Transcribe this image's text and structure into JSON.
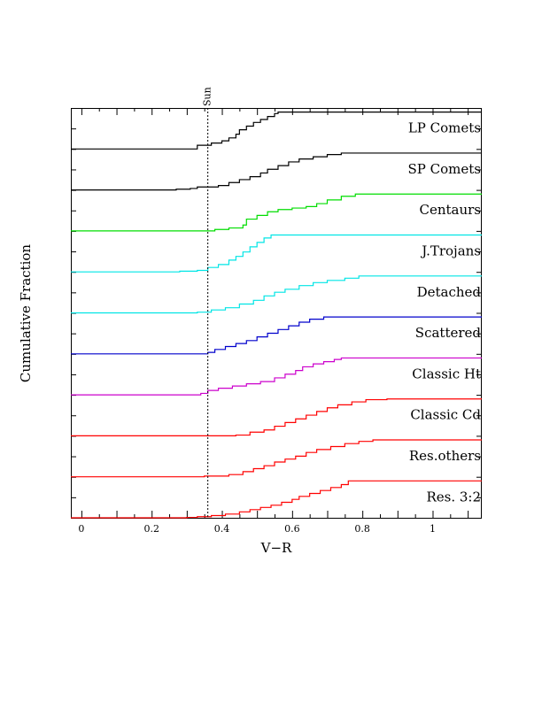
{
  "chart_data": {
    "type": "line",
    "subtype": "stacked cumulative step distributions",
    "xlabel": "V−R",
    "ylabel": "Cumulative Fraction",
    "xlim": [
      -0.03,
      1.14
    ],
    "xticks": [
      0,
      0.2,
      0.4,
      0.6,
      0.8,
      1
    ],
    "xtick_labels": [
      "0",
      "0.2",
      "0.4",
      "0.6",
      "0.8",
      "1"
    ],
    "reference_line": {
      "label": "Sun",
      "x": 0.36,
      "style": "dotted"
    },
    "grid": false,
    "series": [
      {
        "name": "Res. 3:2",
        "color": "#ff0000",
        "points": [
          [
            -0.03,
            0
          ],
          [
            0.3,
            0.01
          ],
          [
            0.33,
            0.03
          ],
          [
            0.37,
            0.06
          ],
          [
            0.41,
            0.1
          ],
          [
            0.45,
            0.16
          ],
          [
            0.48,
            0.22
          ],
          [
            0.51,
            0.28
          ],
          [
            0.54,
            0.34
          ],
          [
            0.57,
            0.42
          ],
          [
            0.6,
            0.5
          ],
          [
            0.62,
            0.58
          ],
          [
            0.65,
            0.66
          ],
          [
            0.68,
            0.74
          ],
          [
            0.71,
            0.82
          ],
          [
            0.74,
            0.9
          ],
          [
            0.76,
            1
          ],
          [
            1.14,
            1
          ]
        ]
      },
      {
        "name": "Res.others",
        "color": "#ff0000",
        "points": [
          [
            -0.03,
            0
          ],
          [
            0.35,
            0.02
          ],
          [
            0.42,
            0.06
          ],
          [
            0.46,
            0.14
          ],
          [
            0.49,
            0.22
          ],
          [
            0.52,
            0.3
          ],
          [
            0.55,
            0.4
          ],
          [
            0.58,
            0.48
          ],
          [
            0.61,
            0.56
          ],
          [
            0.64,
            0.66
          ],
          [
            0.67,
            0.74
          ],
          [
            0.71,
            0.82
          ],
          [
            0.75,
            0.9
          ],
          [
            0.79,
            0.96
          ],
          [
            0.83,
            1
          ],
          [
            1.14,
            1
          ]
        ]
      },
      {
        "name": "Classic Cd",
        "color": "#ff0000",
        "points": [
          [
            -0.03,
            0
          ],
          [
            0.44,
            0.02
          ],
          [
            0.48,
            0.1
          ],
          [
            0.52,
            0.16
          ],
          [
            0.55,
            0.26
          ],
          [
            0.58,
            0.36
          ],
          [
            0.61,
            0.46
          ],
          [
            0.64,
            0.56
          ],
          [
            0.67,
            0.66
          ],
          [
            0.7,
            0.76
          ],
          [
            0.73,
            0.84
          ],
          [
            0.77,
            0.92
          ],
          [
            0.81,
            0.98
          ],
          [
            0.87,
            1
          ],
          [
            1.14,
            1
          ]
        ]
      },
      {
        "name": "Classic Ht",
        "color": "#cc00cc",
        "points": [
          [
            -0.03,
            0
          ],
          [
            0.34,
            0.04
          ],
          [
            0.36,
            0.12
          ],
          [
            0.39,
            0.18
          ],
          [
            0.43,
            0.24
          ],
          [
            0.47,
            0.3
          ],
          [
            0.51,
            0.36
          ],
          [
            0.55,
            0.46
          ],
          [
            0.58,
            0.56
          ],
          [
            0.61,
            0.66
          ],
          [
            0.63,
            0.76
          ],
          [
            0.66,
            0.84
          ],
          [
            0.69,
            0.9
          ],
          [
            0.72,
            0.96
          ],
          [
            0.74,
            1
          ],
          [
            1.14,
            1
          ]
        ]
      },
      {
        "name": "Scattered",
        "color": "#0000cc",
        "points": [
          [
            -0.03,
            0
          ],
          [
            0.36,
            0.04
          ],
          [
            0.38,
            0.12
          ],
          [
            0.41,
            0.2
          ],
          [
            0.44,
            0.28
          ],
          [
            0.47,
            0.36
          ],
          [
            0.5,
            0.46
          ],
          [
            0.53,
            0.56
          ],
          [
            0.56,
            0.66
          ],
          [
            0.59,
            0.76
          ],
          [
            0.62,
            0.86
          ],
          [
            0.65,
            0.94
          ],
          [
            0.69,
            1
          ],
          [
            1.14,
            1
          ]
        ]
      },
      {
        "name": "Detached",
        "color": "#00e5e5",
        "points": [
          [
            -0.03,
            0
          ],
          [
            0.33,
            0.02
          ],
          [
            0.37,
            0.08
          ],
          [
            0.41,
            0.14
          ],
          [
            0.45,
            0.24
          ],
          [
            0.49,
            0.34
          ],
          [
            0.52,
            0.46
          ],
          [
            0.55,
            0.56
          ],
          [
            0.58,
            0.64
          ],
          [
            0.62,
            0.74
          ],
          [
            0.66,
            0.82
          ],
          [
            0.7,
            0.88
          ],
          [
            0.75,
            0.94
          ],
          [
            0.79,
            1
          ],
          [
            1.14,
            1
          ]
        ]
      },
      {
        "name": "J.Trojans",
        "color": "#00e5e5",
        "points": [
          [
            -0.03,
            0
          ],
          [
            0.28,
            0.02
          ],
          [
            0.33,
            0.04
          ],
          [
            0.36,
            0.12
          ],
          [
            0.39,
            0.2
          ],
          [
            0.42,
            0.32
          ],
          [
            0.44,
            0.42
          ],
          [
            0.46,
            0.54
          ],
          [
            0.48,
            0.68
          ],
          [
            0.5,
            0.8
          ],
          [
            0.52,
            0.92
          ],
          [
            0.54,
            1
          ],
          [
            1.14,
            1
          ]
        ]
      },
      {
        "name": "Centaurs",
        "color": "#00dd00",
        "points": [
          [
            -0.03,
            0
          ],
          [
            0.38,
            0.04
          ],
          [
            0.42,
            0.08
          ],
          [
            0.46,
            0.16
          ],
          [
            0.47,
            0.32
          ],
          [
            0.5,
            0.42
          ],
          [
            0.53,
            0.52
          ],
          [
            0.56,
            0.58
          ],
          [
            0.6,
            0.62
          ],
          [
            0.64,
            0.66
          ],
          [
            0.67,
            0.74
          ],
          [
            0.7,
            0.84
          ],
          [
            0.74,
            0.94
          ],
          [
            0.78,
            1
          ],
          [
            1.14,
            1
          ]
        ]
      },
      {
        "name": "SP Comets",
        "color": "#000000",
        "points": [
          [
            -0.03,
            0
          ],
          [
            0.27,
            0.02
          ],
          [
            0.31,
            0.04
          ],
          [
            0.33,
            0.08
          ],
          [
            0.39,
            0.12
          ],
          [
            0.42,
            0.2
          ],
          [
            0.45,
            0.28
          ],
          [
            0.48,
            0.36
          ],
          [
            0.51,
            0.46
          ],
          [
            0.53,
            0.56
          ],
          [
            0.56,
            0.66
          ],
          [
            0.59,
            0.76
          ],
          [
            0.62,
            0.84
          ],
          [
            0.66,
            0.9
          ],
          [
            0.7,
            0.96
          ],
          [
            0.74,
            1
          ],
          [
            1.14,
            1
          ]
        ]
      },
      {
        "name": "LP Comets",
        "color": "#000000",
        "points": [
          [
            -0.03,
            0
          ],
          [
            0.33,
            0.1
          ],
          [
            0.37,
            0.16
          ],
          [
            0.4,
            0.22
          ],
          [
            0.42,
            0.3
          ],
          [
            0.44,
            0.4
          ],
          [
            0.45,
            0.52
          ],
          [
            0.47,
            0.62
          ],
          [
            0.49,
            0.72
          ],
          [
            0.51,
            0.8
          ],
          [
            0.53,
            0.88
          ],
          [
            0.55,
            0.96
          ],
          [
            0.56,
            1
          ],
          [
            1.14,
            1
          ]
        ]
      }
    ]
  }
}
